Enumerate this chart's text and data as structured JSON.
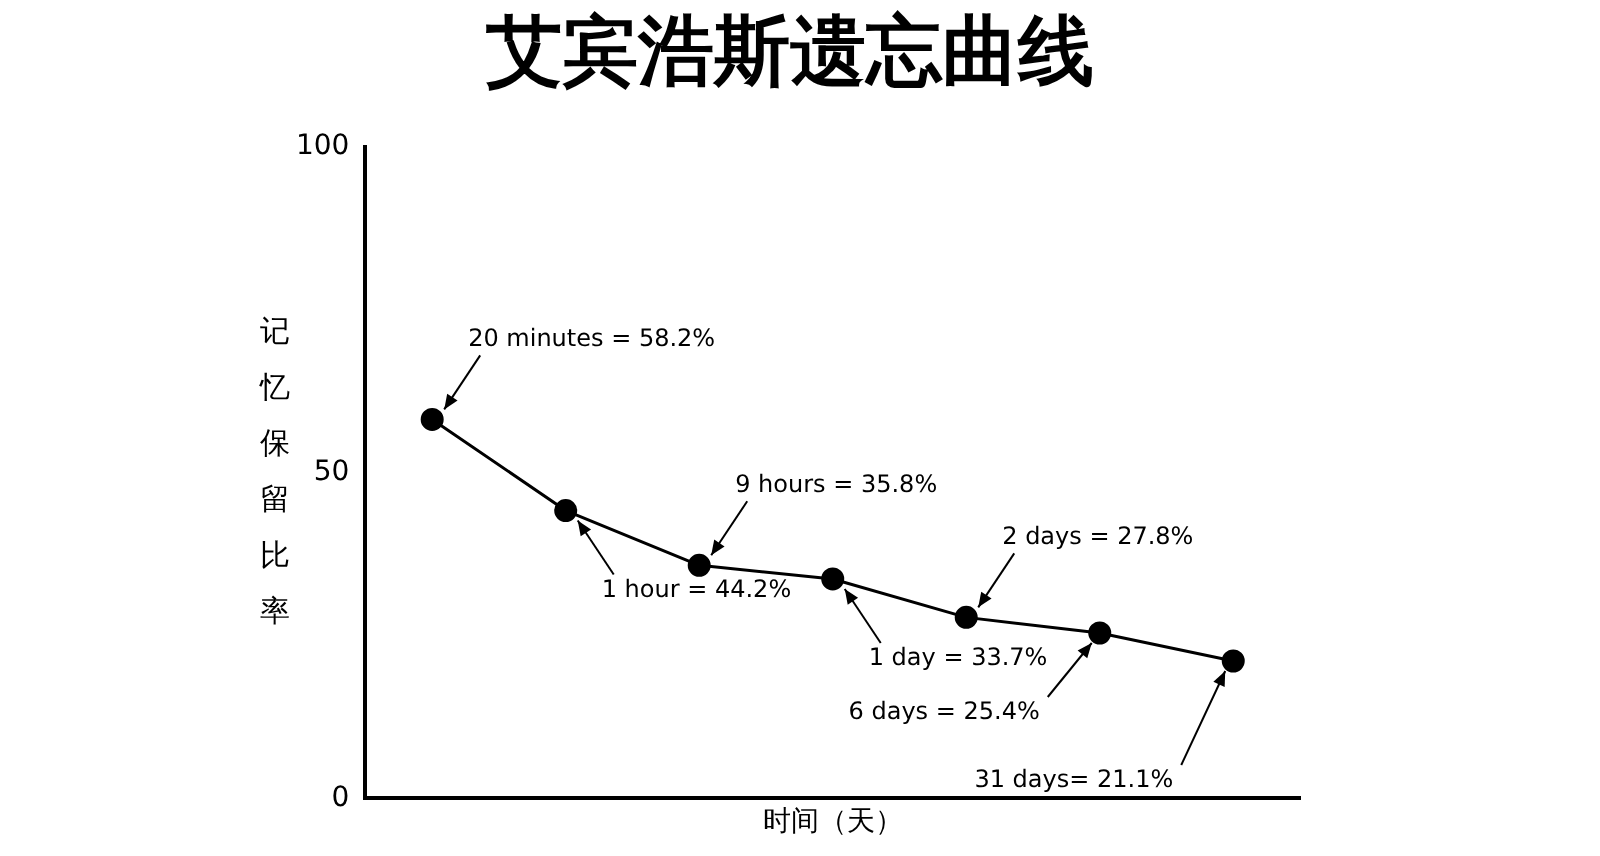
{
  "chart_data": {
    "type": "line",
    "title": "艾宾浩斯遗忘曲线",
    "xlabel": "时间（天）",
    "ylabel": "记忆保留比率",
    "categories": [
      null,
      null,
      null,
      null,
      null,
      null,
      null
    ],
    "values": [
      58.2,
      44.2,
      35.8,
      33.7,
      27.8,
      25.4,
      21.1
    ],
    "value_labels": [
      "20 minutes = 58.2%",
      "1 hour = 44.2%",
      "9 hours = 35.8%",
      "1 day = 33.7%",
      "2 days = 27.8%",
      "6 days = 25.4%",
      "31 days= 21.1%"
    ],
    "color": "#000000",
    "marker": "circle",
    "line_style": "solid",
    "ylim": [
      0,
      100
    ],
    "yticks": [
      0,
      50,
      100
    ],
    "grid": false,
    "legend": false,
    "tick_labels": "y"
  }
}
